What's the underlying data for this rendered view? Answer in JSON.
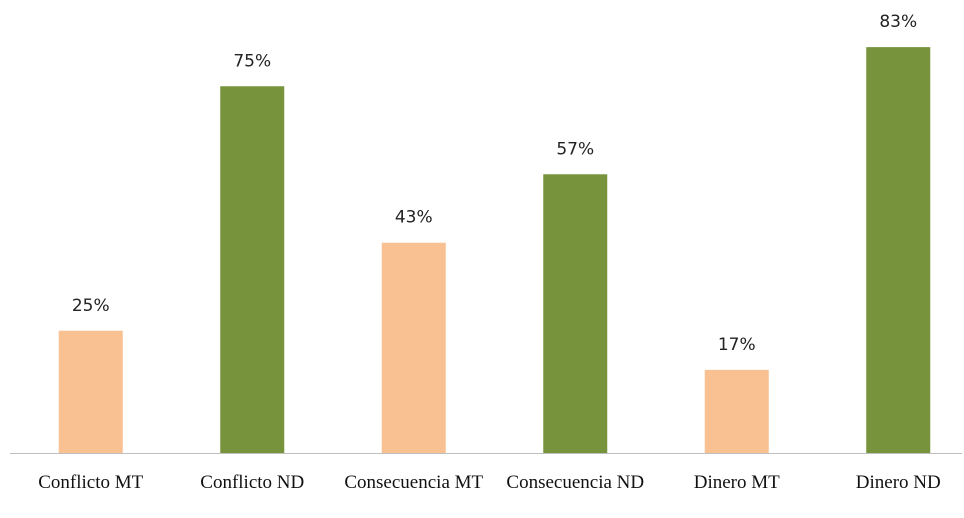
{
  "chart_data": {
    "type": "bar",
    "categories": [
      "Conflicto MT",
      "Conflicto ND",
      "Consecuencia MT",
      "Consecuencia ND",
      "Dinero MT",
      "Dinero ND"
    ],
    "values": [
      25,
      75,
      43,
      57,
      17,
      83
    ],
    "value_labels": [
      "25%",
      "75%",
      "43%",
      "57%",
      "17%",
      "83%"
    ],
    "colors": [
      "#f9c091",
      "#77933c",
      "#f9c091",
      "#77933c",
      "#f9c091",
      "#77933c"
    ]
  }
}
